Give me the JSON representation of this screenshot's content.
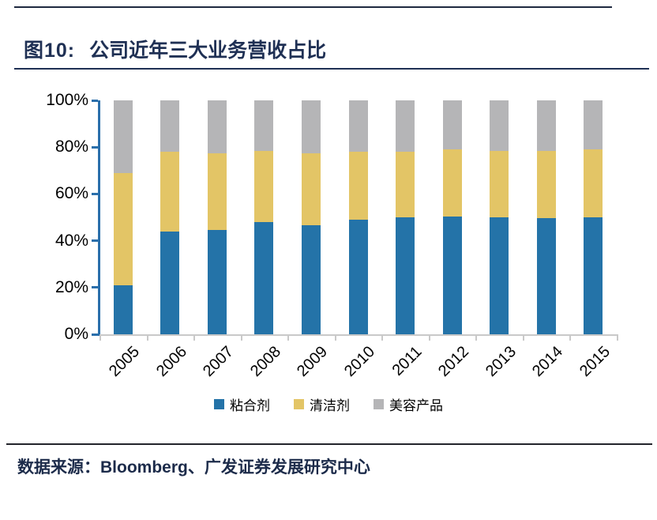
{
  "figure": {
    "label": "图10:",
    "title": "公司近年三大业务营收占比"
  },
  "footer": {
    "source": "数据来源：Bloomberg、广发证券发展研究中心"
  },
  "chart_data": {
    "type": "bar",
    "stacked": true,
    "units": "percent",
    "title": "公司近年三大业务营收占比",
    "categories": [
      "2005",
      "2006",
      "2007",
      "2008",
      "2009",
      "2010",
      "2011",
      "2012",
      "2013",
      "2014",
      "2015"
    ],
    "series": [
      {
        "name": "粘合剂",
        "color": "#2473a8",
        "values": [
          21,
          44,
          44.5,
          48,
          46.5,
          49,
          50,
          50.5,
          50,
          49.5,
          50
        ]
      },
      {
        "name": "清洁剂",
        "color": "#e3c566",
        "values": [
          48,
          34,
          33,
          30.5,
          31,
          29,
          28,
          28.5,
          28.5,
          29,
          29
        ]
      },
      {
        "name": "美容产品",
        "color": "#b5b5b7",
        "values": [
          31,
          22,
          22.5,
          21.5,
          22.5,
          22,
          22,
          21,
          21.5,
          21.5,
          21
        ]
      }
    ],
    "ylim": [
      0,
      100
    ],
    "y_ticks": [
      0,
      20,
      40,
      60,
      80,
      100
    ],
    "y_tick_suffix": "%",
    "grid": false,
    "legend_position": "bottom",
    "axis_colors": {
      "y_axis": "#2a6fab",
      "x_axis": "#c9c9c9"
    }
  }
}
